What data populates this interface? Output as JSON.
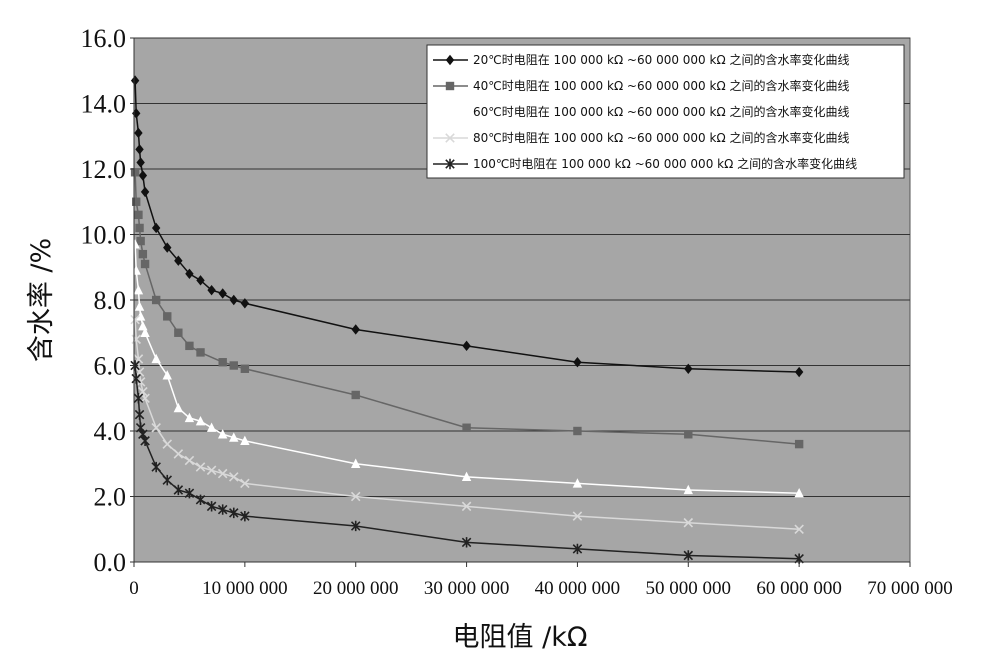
{
  "chart_data": {
    "type": "line",
    "xlabel": "电阻值 /kΩ",
    "ylabel": "含水率 /%",
    "xlim": [
      0,
      70000000
    ],
    "ylim": [
      0,
      16
    ],
    "x_ticks": [
      0,
      10000000,
      20000000,
      30000000,
      40000000,
      50000000,
      60000000,
      70000000
    ],
    "x_tick_labels": [
      "0",
      "10 000 000",
      "20 000 000",
      "30 000 000",
      "40 000 000",
      "50 000 000",
      "60 000 000",
      "70 000 000"
    ],
    "y_ticks": [
      0,
      2,
      4,
      6,
      8,
      10,
      12,
      14,
      16
    ],
    "y_tick_labels": [
      "0.0",
      "2.0",
      "4.0",
      "6.0",
      "8.0",
      "10.0",
      "12.0",
      "14.0",
      "16.0"
    ],
    "grid": "horizontal",
    "legend_position": "top-right",
    "plot_background": "#a6a6a6",
    "series": [
      {
        "name": "20℃时电阻在 100 000 kΩ ~60 000 000 kΩ 之间的含水率变化曲线",
        "color": "#111111",
        "marker": "diamond",
        "x": [
          100000,
          200000,
          400000,
          500000,
          600000,
          800000,
          1000000,
          2000000,
          3000000,
          4000000,
          5000000,
          6000000,
          7000000,
          8000000,
          9000000,
          10000000,
          20000000,
          30000000,
          40000000,
          50000000,
          60000000
        ],
        "y": [
          14.7,
          13.7,
          13.1,
          12.6,
          12.2,
          11.8,
          11.3,
          10.2,
          9.6,
          9.2,
          8.8,
          8.6,
          8.3,
          8.2,
          8.0,
          7.9,
          7.1,
          6.6,
          6.1,
          5.9,
          5.8
        ]
      },
      {
        "name": "40℃时电阻在 100 000 kΩ ~60 000 000 kΩ 之间的含水率变化曲线",
        "color": "#666666",
        "marker": "square",
        "x": [
          100000,
          200000,
          400000,
          500000,
          600000,
          800000,
          1000000,
          2000000,
          3000000,
          4000000,
          5000000,
          6000000,
          8000000,
          9000000,
          10000000,
          20000000,
          30000000,
          40000000,
          50000000,
          60000000
        ],
        "y": [
          11.9,
          11.0,
          10.6,
          10.2,
          9.8,
          9.4,
          9.1,
          8.0,
          7.5,
          7.0,
          6.6,
          6.4,
          6.1,
          6.0,
          5.9,
          5.1,
          4.1,
          4.0,
          3.9,
          3.6
        ]
      },
      {
        "name": "60℃时电阻在 100 000 kΩ ~60 000 000 kΩ 之间的含水率变化曲线",
        "color": "#ffffff",
        "marker": "triangle",
        "x": [
          100000,
          200000,
          400000,
          500000,
          600000,
          800000,
          1000000,
          2000000,
          3000000,
          4000000,
          5000000,
          6000000,
          7000000,
          8000000,
          9000000,
          10000000,
          20000000,
          30000000,
          40000000,
          50000000,
          60000000
        ],
        "y": [
          9.7,
          8.9,
          8.3,
          7.8,
          7.5,
          7.2,
          7.0,
          6.2,
          5.7,
          4.7,
          4.4,
          4.3,
          4.1,
          3.9,
          3.8,
          3.7,
          3.0,
          2.6,
          2.4,
          2.2,
          2.1
        ]
      },
      {
        "name": "80℃时电阻在 100 000 kΩ ~60 000 000 kΩ 之间的含水率变化曲线",
        "color": "#d9d9d9",
        "marker": "x",
        "x": [
          100000,
          200000,
          400000,
          500000,
          600000,
          800000,
          1000000,
          2000000,
          3000000,
          4000000,
          5000000,
          6000000,
          7000000,
          8000000,
          9000000,
          10000000,
          20000000,
          30000000,
          40000000,
          50000000,
          60000000
        ],
        "y": [
          7.4,
          6.8,
          6.2,
          5.8,
          5.5,
          5.2,
          5.0,
          4.1,
          3.6,
          3.3,
          3.1,
          2.9,
          2.8,
          2.7,
          2.6,
          2.4,
          2.0,
          1.7,
          1.4,
          1.2,
          1.0
        ]
      },
      {
        "name": "100℃时电阻在 100 000 kΩ ~60 000 000 kΩ 之间的含水率变化曲线",
        "color": "#222222",
        "marker": "asterisk",
        "x": [
          100000,
          200000,
          400000,
          500000,
          600000,
          800000,
          1000000,
          2000000,
          3000000,
          4000000,
          5000000,
          6000000,
          7000000,
          8000000,
          9000000,
          10000000,
          20000000,
          30000000,
          40000000,
          50000000,
          60000000
        ],
        "y": [
          6.0,
          5.6,
          5.0,
          4.5,
          4.1,
          3.9,
          3.7,
          2.9,
          2.5,
          2.2,
          2.1,
          1.9,
          1.7,
          1.6,
          1.5,
          1.4,
          1.1,
          0.6,
          0.4,
          0.2,
          0.1
        ]
      }
    ]
  }
}
